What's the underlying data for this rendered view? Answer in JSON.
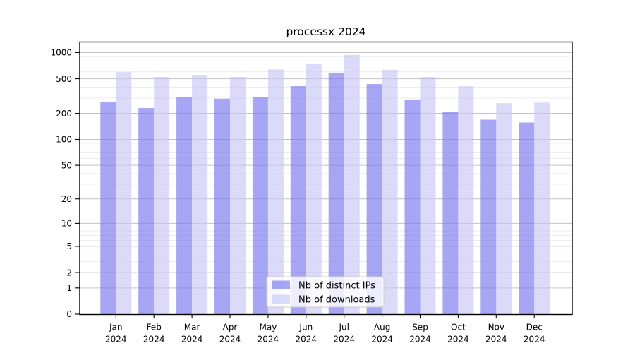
{
  "chart_data": {
    "type": "bar",
    "title": "processx 2024",
    "categories": [
      "Jan",
      "Feb",
      "Mar",
      "Apr",
      "May",
      "Jun",
      "Jul",
      "Aug",
      "Sep",
      "Oct",
      "Nov",
      "Dec"
    ],
    "x_tick_second_line": "2024",
    "series": [
      {
        "name": "Nb of distinct IPs",
        "fill": "rgba(118,118,238,0.65)",
        "values": [
          268,
          230,
          305,
          295,
          307,
          411,
          587,
          435,
          289,
          209,
          169,
          157
        ]
      },
      {
        "name": "Nb of downloads",
        "fill": "rgba(200,200,246,0.65)",
        "values": [
          595,
          525,
          555,
          525,
          640,
          735,
          940,
          635,
          525,
          410,
          262,
          266
        ]
      }
    ],
    "y_axis": {
      "scale": "log10(1+value)",
      "major_ticks": [
        0,
        1,
        2,
        5,
        10,
        20,
        50,
        100,
        200,
        500,
        1000
      ],
      "minor_ticks": [
        3,
        4,
        6,
        7,
        8,
        9,
        30,
        40,
        60,
        70,
        80,
        90,
        300,
        400,
        600,
        700,
        800,
        900
      ],
      "range": [
        0,
        1320
      ]
    },
    "legend": {
      "position": "lower center"
    },
    "grid": true
  },
  "colors": {
    "bar_distinct_ips": "rgba(118,118,238,0.65)",
    "bar_downloads": "rgba(200,200,246,0.65)",
    "major_grid": "#c3c3c3",
    "minor_grid": "#ececec",
    "axis": "#000000",
    "legend_border": "#cccccc",
    "legend_bg": "rgba(255,255,255,0.8)"
  }
}
